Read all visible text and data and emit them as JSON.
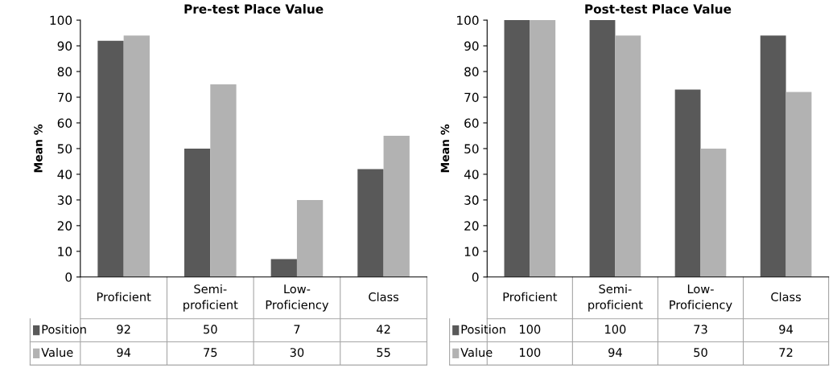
{
  "chart_data": [
    {
      "type": "bar",
      "title": "Pre-test Place Value",
      "ylabel": "Mean %",
      "legend": "bottom left",
      "categories": [
        "Proficient",
        "Semi-\nproficient",
        "Low-\nProficiency",
        "Class"
      ],
      "ylim": [
        0,
        100
      ],
      "yticks": [
        0,
        10,
        20,
        30,
        40,
        50,
        60,
        70,
        80,
        90,
        100
      ],
      "grid": false,
      "data_labels": true,
      "series": [
        {
          "name": "Position",
          "color": "#595959",
          "values": [
            92,
            50,
            7,
            42
          ]
        },
        {
          "name": "Value",
          "color": "#b2b2b2",
          "values": [
            94,
            75,
            30,
            55
          ]
        }
      ]
    },
    {
      "type": "bar",
      "title": "Post-test Place Value",
      "ylabel": "Mean %",
      "legend": "bottom left",
      "categories": [
        "Proficient",
        "Semi-\nproficient",
        "Low-\nProficiency",
        "Class"
      ],
      "ylim": [
        0,
        100
      ],
      "yticks": [
        0,
        10,
        20,
        30,
        40,
        50,
        60,
        70,
        80,
        90,
        100
      ],
      "grid": false,
      "data_labels": true,
      "series": [
        {
          "name": "Position",
          "color": "#595959",
          "values": [
            100,
            100,
            73,
            94
          ]
        },
        {
          "name": "Value",
          "color": "#b2b2b2",
          "values": [
            100,
            94,
            50,
            72
          ]
        }
      ]
    }
  ]
}
